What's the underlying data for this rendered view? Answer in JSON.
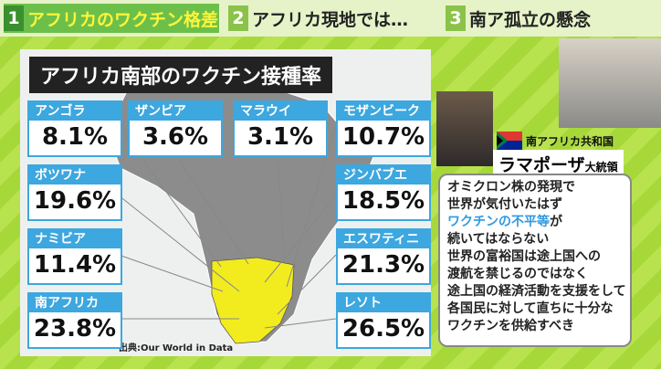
{
  "tabs": [
    {
      "number": "1",
      "label": "アフリカのワクチン格差"
    },
    {
      "number": "2",
      "label": "アフリカ現地では…"
    },
    {
      "number": "3",
      "label": "南ア孤立の懸念"
    }
  ],
  "infographic": {
    "title": "アフリカ南部のワクチン接種率",
    "countries": [
      {
        "name": "アンゴラ",
        "rate": "8.1%"
      },
      {
        "name": "ボツワナ",
        "rate": "19.6%"
      },
      {
        "name": "ナミビア",
        "rate": "11.4%"
      },
      {
        "name": "南アフリカ",
        "rate": "23.8%"
      },
      {
        "name": "ザンビア",
        "rate": "3.6%"
      },
      {
        "name": "マラウイ",
        "rate": "3.1%"
      },
      {
        "name": "モザンビーク",
        "rate": "10.7%"
      },
      {
        "name": "ジンバブエ",
        "rate": "18.5%"
      },
      {
        "name": "エスワティニ",
        "rate": "21.3%"
      },
      {
        "name": "レソト",
        "rate": "26.5%"
      }
    ],
    "source": "出典:Our World in Data"
  },
  "speaker": {
    "country": "南アフリカ共和国",
    "name": "ラマポーザ",
    "title": "大統領"
  },
  "quote": {
    "lines": [
      "オミクロン株の発現で",
      "世界が気付いたはず",
      {
        "highlight": "ワクチンの不平等",
        "rest": "が"
      },
      "続いてはならない",
      "世界の富裕国は途上国への",
      "渡航を禁じるのではなく",
      "途上国の経済活動を支援をして",
      "各国民に対して直ちに十分な",
      "ワクチンを供給すべき"
    ]
  }
}
